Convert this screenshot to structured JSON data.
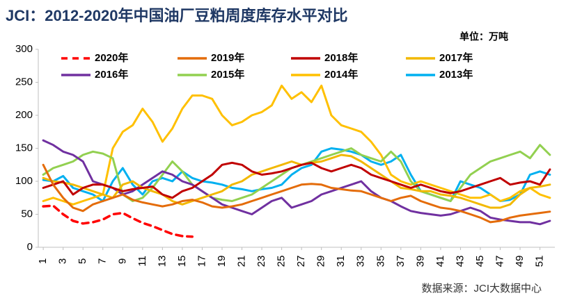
{
  "chart_data": {
    "type": "line",
    "title": "JCI：2012-2020年中国油厂豆粕周度库存水平对比",
    "unit_note": "单位：万吨",
    "source": "数据来源：JCI大数据中心",
    "x": [
      1,
      2,
      3,
      4,
      5,
      6,
      7,
      8,
      9,
      10,
      11,
      12,
      13,
      14,
      15,
      16,
      17,
      18,
      19,
      20,
      21,
      22,
      23,
      24,
      25,
      26,
      27,
      28,
      29,
      30,
      31,
      32,
      33,
      34,
      35,
      36,
      37,
      38,
      39,
      40,
      41,
      42,
      43,
      44,
      45,
      46,
      47,
      48,
      49,
      50,
      51,
      52
    ],
    "xlim": [
      0.5,
      52.5
    ],
    "xticks": [
      1,
      3,
      5,
      7,
      9,
      11,
      13,
      15,
      17,
      19,
      21,
      23,
      25,
      27,
      29,
      31,
      33,
      35,
      37,
      39,
      41,
      43,
      45,
      47,
      49,
      51
    ],
    "ylim": [
      0,
      300
    ],
    "yticks": [
      0,
      50,
      100,
      150,
      200,
      250,
      300
    ],
    "grid": false,
    "series": [
      {
        "name": "2020年",
        "color": "#ff0000",
        "dashed": true,
        "values": [
          62,
          63,
          50,
          40,
          36,
          38,
          42,
          50,
          52,
          44,
          37,
          32,
          26,
          20,
          17,
          16,
          null,
          null,
          null,
          null,
          null,
          null,
          null,
          null,
          null,
          null,
          null,
          null,
          null,
          null,
          null,
          null,
          null,
          null,
          null,
          null,
          null,
          null,
          null,
          null,
          null,
          null,
          null,
          null,
          null,
          null,
          null,
          null,
          null,
          null,
          null,
          null
        ]
      },
      {
        "name": "2019年",
        "color": "#e46c0a",
        "values": [
          125,
          95,
          75,
          60,
          55,
          65,
          70,
          75,
          80,
          72,
          68,
          65,
          62,
          65,
          70,
          72,
          68,
          62,
          60,
          62,
          65,
          70,
          75,
          80,
          85,
          90,
          95,
          96,
          95,
          90,
          88,
          86,
          85,
          80,
          75,
          70,
          75,
          78,
          70,
          65,
          60,
          58,
          55,
          50,
          45,
          38,
          40,
          45,
          48,
          50,
          52,
          54
        ]
      },
      {
        "name": "2018年",
        "color": "#c00000",
        "values": [
          90,
          95,
          100,
          80,
          90,
          95,
          95,
          90,
          85,
          88,
          90,
          92,
          80,
          75,
          85,
          90,
          100,
          110,
          125,
          128,
          125,
          115,
          110,
          112,
          115,
          120,
          125,
          128,
          120,
          115,
          120,
          125,
          120,
          110,
          105,
          100,
          95,
          90,
          95,
          90,
          85,
          82,
          85,
          90,
          95,
          100,
          105,
          95,
          98,
          100,
          95,
          118
        ]
      },
      {
        "name": "2017年",
        "color": "#f2b800",
        "values": [
          105,
          100,
          98,
          95,
          90,
          85,
          80,
          75,
          95,
          100,
          90,
          85,
          80,
          70,
          65,
          70,
          75,
          80,
          85,
          95,
          100,
          110,
          115,
          120,
          125,
          130,
          125,
          128,
          130,
          135,
          140,
          138,
          130,
          120,
          110,
          100,
          90,
          88,
          85,
          85,
          80,
          78,
          75,
          70,
          65,
          60,
          60,
          65,
          80,
          90,
          92,
          95
        ]
      },
      {
        "name": "2016年",
        "color": "#7030a0",
        "values": [
          162,
          155,
          145,
          140,
          130,
          100,
          95,
          90,
          80,
          85,
          95,
          105,
          115,
          110,
          100,
          95,
          85,
          75,
          65,
          60,
          55,
          50,
          60,
          70,
          75,
          60,
          65,
          70,
          80,
          85,
          90,
          95,
          100,
          85,
          75,
          70,
          62,
          55,
          52,
          50,
          48,
          50,
          55,
          60,
          55,
          45,
          42,
          40,
          38,
          38,
          35,
          40
        ]
      },
      {
        "name": "2015年",
        "color": "#92d050",
        "values": [
          110,
          120,
          125,
          130,
          140,
          145,
          142,
          135,
          80,
          70,
          75,
          90,
          110,
          130,
          115,
          95,
          85,
          75,
          72,
          70,
          75,
          80,
          90,
          100,
          110,
          120,
          125,
          130,
          135,
          140,
          145,
          150,
          140,
          135,
          130,
          145,
          130,
          100,
          85,
          80,
          75,
          70,
          90,
          110,
          120,
          130,
          135,
          140,
          145,
          135,
          155,
          140
        ]
      },
      {
        "name": "2014年",
        "color": "#ffc000",
        "values": [
          70,
          75,
          70,
          65,
          70,
          75,
          80,
          150,
          175,
          185,
          210,
          190,
          160,
          180,
          210,
          230,
          230,
          225,
          200,
          185,
          190,
          200,
          205,
          215,
          245,
          225,
          235,
          220,
          245,
          200,
          185,
          180,
          175,
          160,
          140,
          110,
          100,
          95,
          100,
          95,
          90,
          85,
          80,
          75,
          75,
          80,
          70,
          75,
          85,
          90,
          80,
          75
        ]
      },
      {
        "name": "2013年",
        "color": "#00b0f0",
        "values": [
          102,
          100,
          108,
          90,
          85,
          80,
          70,
          100,
          120,
          95,
          80,
          100,
          105,
          100,
          115,
          105,
          100,
          98,
          95,
          90,
          88,
          85,
          88,
          90,
          95,
          110,
          120,
          125,
          145,
          150,
          148,
          145,
          140,
          130,
          125,
          130,
          140,
          110,
          85,
          80,
          75,
          70,
          100,
          95,
          90,
          80,
          70,
          72,
          80,
          110,
          115,
          110
        ]
      }
    ]
  }
}
